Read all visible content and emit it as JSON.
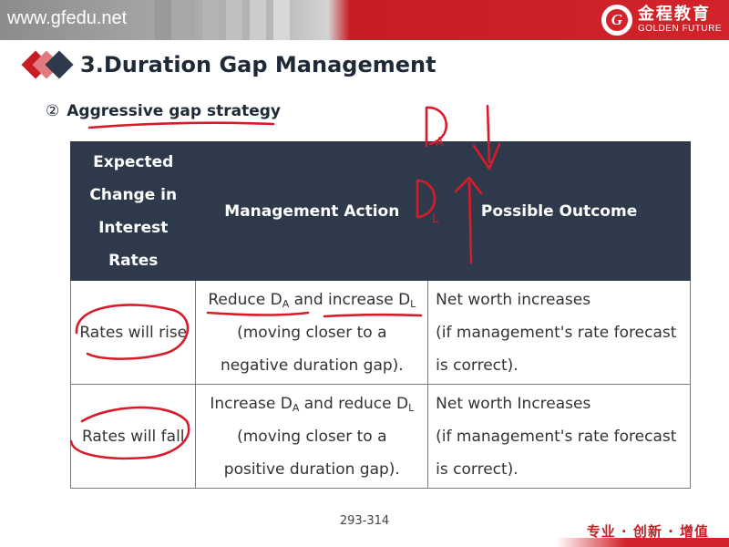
{
  "header": {
    "site": "www.gfedu.net",
    "brand_cn": "金程教育",
    "brand_en": "GOLDEN FUTURE",
    "logo_letter": "G"
  },
  "slide": {
    "title": "3.Duration Gap Management",
    "subtitle_number": "②",
    "subtitle": "Aggressive gap strategy"
  },
  "table": {
    "headers": {
      "col1": [
        "Expected",
        "Change in",
        "Interest",
        "Rates"
      ],
      "col2": "Management Action",
      "col3": "Possible Outcome"
    },
    "rows": [
      {
        "expectation": "Rates will rise",
        "action_prefix": "Reduce D",
        "action_sub_a": "A",
        "action_mid": " and increase D",
        "action_sub_b": "L",
        "action_line2": "(moving closer to a",
        "action_line3": "negative duration gap).",
        "outcome": [
          "Net worth increases",
          "(if management's rate forecast",
          "is correct)."
        ]
      },
      {
        "expectation": "Rates will fall",
        "action_prefix": "Increase D",
        "action_sub_a": "A",
        "action_mid": " and reduce D",
        "action_sub_b": "L",
        "action_line2": "(moving closer to a",
        "action_line3": "positive duration gap).",
        "outcome": [
          "Net worth Increases",
          "(if management's rate forecast",
          "is correct)."
        ]
      }
    ]
  },
  "footer": {
    "page_range": "293-314",
    "slogan": "专业 · 创新 · 增值"
  },
  "colors": {
    "brand_red": "#d2232a",
    "header_navy": "#2e3a4b",
    "annotation_red": "#d81b2a"
  },
  "annotations": [
    "D",
    "A",
    "D",
    "L"
  ]
}
